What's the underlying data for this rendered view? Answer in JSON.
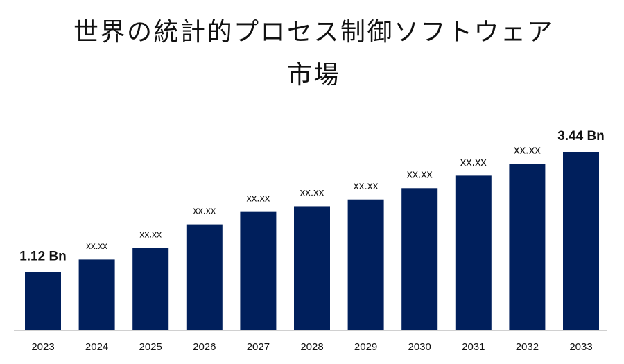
{
  "chart_data": {
    "type": "bar",
    "title": "世界の統計的プロセス制御ソフトウェア市場",
    "categories": [
      "2023",
      "2024",
      "2025",
      "2026",
      "2027",
      "2028",
      "2029",
      "2030",
      "2031",
      "2032",
      "2033"
    ],
    "values": [
      1.12,
      1.36,
      1.58,
      2.04,
      2.28,
      2.39,
      2.52,
      2.74,
      2.98,
      3.21,
      3.44
    ],
    "value_labels": [
      "1.12 Bn",
      "xx.xx",
      "xx.xx",
      "xx.xx",
      "xx.xx",
      "xx.xx",
      "xx.xx",
      "xx.xx",
      "xx.xx",
      "xx.xx",
      "3.44 Bn"
    ],
    "color": "#001f5c"
  }
}
